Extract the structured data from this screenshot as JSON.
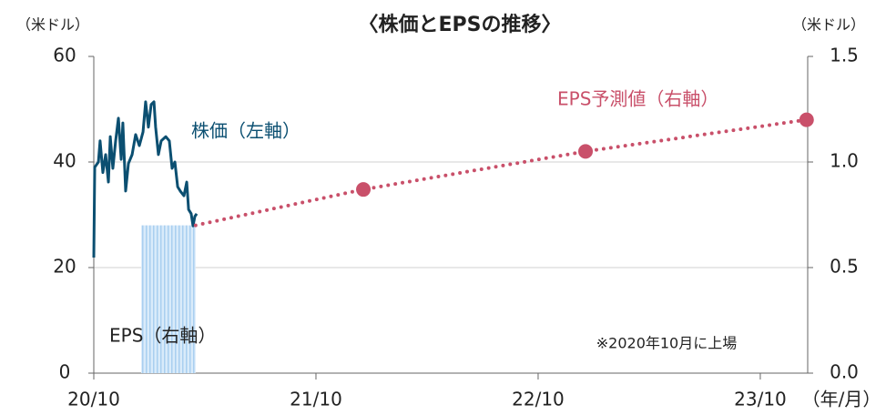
{
  "chart_data": {
    "type": "line",
    "title": "〈株価とEPSの推移〉",
    "ylabel": "（米ドル）",
    "y2label": "（米ドル）",
    "xlabel": "（年/月）",
    "xlim": [
      0,
      38.56
    ],
    "xticks": [
      {
        "value": 0,
        "label": "20/10"
      },
      {
        "value": 12,
        "label": "21/10"
      },
      {
        "value": 24,
        "label": "22/10"
      },
      {
        "value": 36,
        "label": "23/10"
      }
    ],
    "ylim": [
      0,
      60
    ],
    "yticks": [
      0,
      20,
      40,
      60
    ],
    "y2lim": [
      0,
      1.5
    ],
    "y2ticks": [
      {
        "value": 0,
        "label": "0.0"
      },
      0.5,
      {
        "value": 1,
        "label": "1.0"
      },
      1.5
    ],
    "grid": true,
    "series": [
      {
        "name": "株価（左軸）",
        "color": "#0b4f71",
        "style": "solid",
        "x": [
          0,
          0.05,
          0.25,
          0.34,
          0.49,
          0.64,
          0.79,
          0.89,
          1.03,
          1.18,
          1.33,
          1.48,
          1.57,
          1.72,
          1.87,
          2.07,
          2.26,
          2.46,
          2.66,
          2.8,
          2.95,
          3.1,
          3.25,
          3.34,
          3.49,
          3.64,
          3.89,
          4.08,
          4.23,
          4.38,
          4.53,
          4.67,
          4.87,
          5.02,
          5.12,
          5.26,
          5.36,
          5.46,
          5.56
        ],
        "values": [
          21.9,
          39,
          40,
          44,
          38,
          41.4,
          36.2,
          44.8,
          38.8,
          44,
          48.3,
          40.5,
          47.4,
          34.5,
          39.7,
          41.4,
          45.2,
          43.1,
          45.7,
          51.4,
          46.6,
          50.9,
          51.4,
          46.6,
          41.4,
          44,
          44.8,
          44,
          38.8,
          40,
          35.3,
          34.5,
          33.6,
          36.2,
          31,
          30.2,
          27.9,
          29.7,
          30.2
        ]
      },
      {
        "name": "EPS予測値（右軸）",
        "color": "#c9506a",
        "style": "dotted",
        "axis": "y2",
        "x": [
          5.5,
          14.56,
          26.56,
          38.5
        ],
        "values": [
          0.7,
          0.87,
          1.05,
          1.2
        ],
        "markers": [
          false,
          true,
          true,
          true
        ]
      }
    ],
    "bar": {
      "name": "EPS（右軸）",
      "color": "#bfdcf5",
      "axis": "y2",
      "x": [
        2.56,
        5.5
      ],
      "value": 0.7
    },
    "annotations": [
      "※2020年10月に上場"
    ]
  }
}
